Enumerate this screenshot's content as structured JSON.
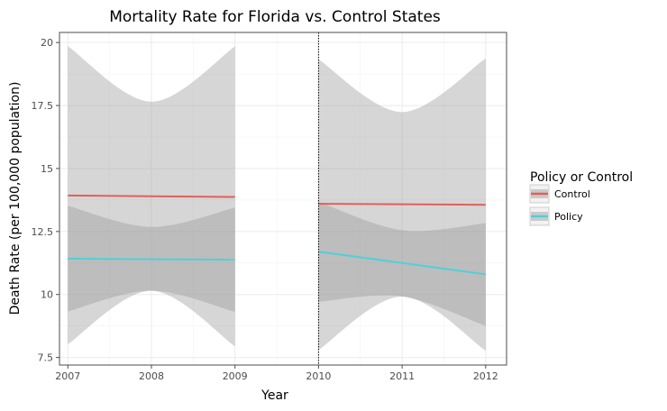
{
  "chart_data": {
    "type": "line",
    "title": "Mortality Rate for Florida vs. Control States",
    "xlabel": "Year",
    "ylabel": "Death Rate (per 100,000 population)",
    "xlim": [
      2006.9,
      2012.25
    ],
    "ylim": [
      7.2,
      20.4
    ],
    "x_ticks": [
      2007,
      2008,
      2009,
      2010,
      2011,
      2012
    ],
    "x_tick_labels": [
      "2007",
      "2008",
      "2009",
      "2010",
      "2011",
      "2012"
    ],
    "y_ticks": [
      7.5,
      10,
      12.5,
      15,
      17.5,
      20
    ],
    "y_tick_labels": [
      "7.5",
      "10",
      "12.5",
      "15",
      "17.5",
      "20"
    ],
    "grid": true,
    "vline": 2010,
    "legend": {
      "title": "Policy or Control",
      "position": "right"
    },
    "series": [
      {
        "name": "Control",
        "color": "#e0605a",
        "segments": [
          {
            "x": [
              2007,
              2008,
              2009
            ],
            "y": [
              13.93,
              13.9,
              13.87
            ],
            "ci_lower": [
              8.03,
              10.15,
              7.94
            ],
            "ci_upper": [
              19.86,
              17.65,
              19.85
            ]
          },
          {
            "x": [
              2010,
              2011,
              2012
            ],
            "y": [
              13.6,
              13.58,
              13.56
            ],
            "ci_lower": [
              7.8,
              9.92,
              7.77
            ],
            "ci_upper": [
              19.33,
              17.24,
              19.37
            ]
          }
        ]
      },
      {
        "name": "Policy",
        "color": "#4fd0d8",
        "segments": [
          {
            "x": [
              2007,
              2008,
              2009
            ],
            "y": [
              11.42,
              11.4,
              11.38
            ],
            "ci_lower": [
              9.33,
              10.15,
              9.31
            ],
            "ci_upper": [
              13.52,
              12.68,
              13.45
            ]
          },
          {
            "x": [
              2010,
              2011,
              2012
            ],
            "y": [
              11.7,
              11.25,
              10.8
            ],
            "ci_lower": [
              9.71,
              9.92,
              8.75
            ],
            "ci_upper": [
              13.68,
              12.55,
              12.83
            ]
          }
        ]
      }
    ]
  }
}
